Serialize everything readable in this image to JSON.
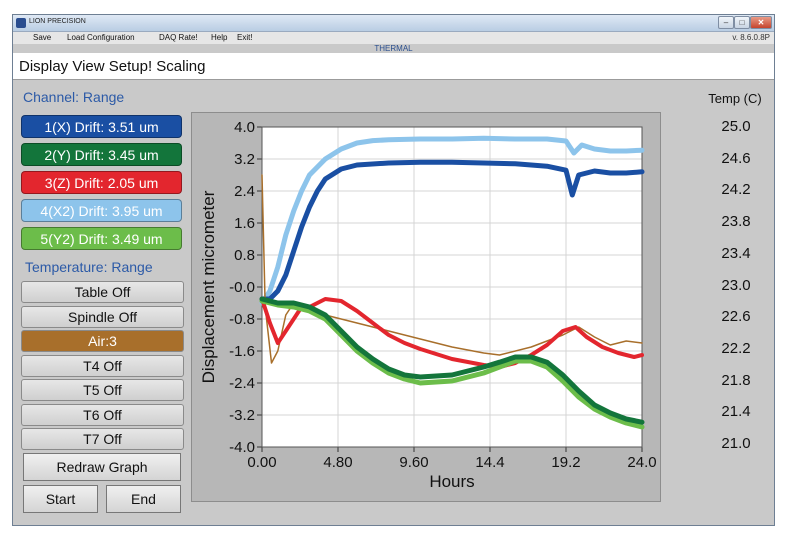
{
  "window": {
    "title": "LION PRECISION",
    "app_name": "THERMAL",
    "version": "v. 8.6.0.8P",
    "controls": {
      "minimize": "–",
      "maximize": "□",
      "close": "✕"
    }
  },
  "menu": {
    "save": "Save",
    "load_configuration": "Load Configuration",
    "daq_rate": "DAQ Rate!",
    "help": "Help",
    "exit": "Exit!"
  },
  "toolbar": {
    "text": "Display View Setup! Scaling"
  },
  "left_panel": {
    "channel_header": "Channel:  Range",
    "channels": [
      {
        "label": "1(X) Drift: 3.51 um",
        "color": "#1a4fa3"
      },
      {
        "label": "2(Y) Drift: 3.45 um",
        "color": "#13753b"
      },
      {
        "label": "3(Z) Drift: 2.05 um",
        "color": "#e3262e"
      },
      {
        "label": "4(X2) Drift: 3.95 um",
        "color": "#8dc4eb"
      },
      {
        "label": "5(Y2) Drift: 3.49 um",
        "color": "#6cbd4a"
      }
    ],
    "temperature_header": "Temperature: Range",
    "temp_buttons": [
      {
        "label": "Table Off",
        "color": ""
      },
      {
        "label": "Spindle Off",
        "color": ""
      },
      {
        "label": "Air:3",
        "color": "#a86f2b"
      },
      {
        "label": "T4 Off",
        "color": ""
      },
      {
        "label": "T5 Off",
        "color": ""
      },
      {
        "label": "T6 Off",
        "color": ""
      },
      {
        "label": "T7 Off",
        "color": ""
      }
    ],
    "redraw": "Redraw Graph",
    "start": "Start",
    "end": "End"
  },
  "temp_axis": {
    "title": "Temp (C)",
    "ticks": [
      "25.0",
      "24.6",
      "24.2",
      "23.8",
      "23.4",
      "23.0",
      "22.6",
      "22.2",
      "21.8",
      "21.4",
      "21.0"
    ]
  },
  "chart_data": {
    "type": "line",
    "xlabel": "Hours",
    "ylabel": "Displacement micrometer",
    "xlim": [
      0,
      24
    ],
    "ylim": [
      -4,
      4
    ],
    "xticks": [
      "0.00",
      "4.80",
      "9.60",
      "14.4",
      "19.2",
      "24.0"
    ],
    "yticks": [
      "4.0",
      "3.2",
      "2.4",
      "1.6",
      "0.8",
      "-0.0",
      "-0.8",
      "-1.6",
      "-2.4",
      "-3.2",
      "-4.0"
    ],
    "grid": true,
    "series": [
      {
        "color": "#8dc4eb",
        "width": 5,
        "points": [
          [
            0,
            -0.4
          ],
          [
            0.5,
            -0.1
          ],
          [
            1,
            0.5
          ],
          [
            1.5,
            1.3
          ],
          [
            2,
            1.9
          ],
          [
            2.5,
            2.4
          ],
          [
            3,
            2.8
          ],
          [
            4,
            3.2
          ],
          [
            5,
            3.45
          ],
          [
            6,
            3.6
          ],
          [
            7,
            3.66
          ],
          [
            8,
            3.68
          ],
          [
            10,
            3.7
          ],
          [
            12,
            3.7
          ],
          [
            14,
            3.72
          ],
          [
            16,
            3.7
          ],
          [
            18,
            3.7
          ],
          [
            19.2,
            3.65
          ],
          [
            19.7,
            3.35
          ],
          [
            20.2,
            3.55
          ],
          [
            21,
            3.45
          ],
          [
            22,
            3.4
          ],
          [
            23,
            3.4
          ],
          [
            24,
            3.42
          ]
        ]
      },
      {
        "color": "#1a4fa3",
        "width": 5,
        "points": [
          [
            0,
            -0.3
          ],
          [
            0.5,
            -0.3
          ],
          [
            1,
            -0.1
          ],
          [
            1.5,
            0.3
          ],
          [
            2,
            0.9
          ],
          [
            2.5,
            1.5
          ],
          [
            3,
            2.0
          ],
          [
            3.5,
            2.4
          ],
          [
            4,
            2.7
          ],
          [
            5,
            2.95
          ],
          [
            6,
            3.05
          ],
          [
            8,
            3.1
          ],
          [
            10,
            3.12
          ],
          [
            12,
            3.12
          ],
          [
            14,
            3.1
          ],
          [
            16,
            3.08
          ],
          [
            18,
            3.02
          ],
          [
            19.2,
            2.92
          ],
          [
            19.6,
            2.3
          ],
          [
            20,
            2.8
          ],
          [
            21,
            2.9
          ],
          [
            22,
            2.85
          ],
          [
            23,
            2.85
          ],
          [
            24,
            2.88
          ]
        ]
      },
      {
        "color": "#a86f2b",
        "width": 1.5,
        "points": [
          [
            0,
            2.8
          ],
          [
            0.2,
            -0.5
          ],
          [
            0.6,
            -1.9
          ],
          [
            1,
            -1.6
          ],
          [
            1.5,
            -0.7
          ],
          [
            2,
            -0.4
          ],
          [
            3,
            -0.5
          ],
          [
            4,
            -0.7
          ],
          [
            6,
            -0.9
          ],
          [
            8,
            -1.1
          ],
          [
            10,
            -1.3
          ],
          [
            12,
            -1.5
          ],
          [
            14,
            -1.65
          ],
          [
            15,
            -1.7
          ],
          [
            17,
            -1.5
          ],
          [
            19,
            -1.2
          ],
          [
            20,
            -1.0
          ],
          [
            21,
            -1.25
          ],
          [
            22,
            -1.45
          ],
          [
            23,
            -1.35
          ],
          [
            24,
            -1.4
          ]
        ]
      },
      {
        "color": "#e3262e",
        "width": 4,
        "points": [
          [
            0,
            -0.3
          ],
          [
            0.5,
            -0.9
          ],
          [
            1,
            -1.4
          ],
          [
            1.5,
            -1.1
          ],
          [
            2,
            -0.8
          ],
          [
            2.5,
            -0.5
          ],
          [
            3,
            -0.5
          ],
          [
            4,
            -0.3
          ],
          [
            5,
            -0.35
          ],
          [
            6,
            -0.6
          ],
          [
            7,
            -0.9
          ],
          [
            8,
            -1.2
          ],
          [
            9,
            -1.4
          ],
          [
            10,
            -1.55
          ],
          [
            12,
            -1.8
          ],
          [
            14,
            -1.95
          ],
          [
            15,
            -2.0
          ],
          [
            16,
            -1.9
          ],
          [
            17,
            -1.7
          ],
          [
            18,
            -1.45
          ],
          [
            19,
            -1.1
          ],
          [
            19.8,
            -1.0
          ],
          [
            20.5,
            -1.25
          ],
          [
            21.5,
            -1.5
          ],
          [
            22.5,
            -1.65
          ],
          [
            23.5,
            -1.75
          ],
          [
            24,
            -1.7
          ]
        ]
      },
      {
        "color": "#6cbd4a",
        "width": 5,
        "points": [
          [
            0,
            -0.35
          ],
          [
            1,
            -0.45
          ],
          [
            2,
            -0.5
          ],
          [
            3,
            -0.6
          ],
          [
            4,
            -0.8
          ],
          [
            5,
            -1.2
          ],
          [
            6,
            -1.6
          ],
          [
            7,
            -1.9
          ],
          [
            8,
            -2.15
          ],
          [
            9,
            -2.3
          ],
          [
            10,
            -2.4
          ],
          [
            12,
            -2.35
          ],
          [
            14,
            -2.15
          ],
          [
            15,
            -2.0
          ],
          [
            16,
            -1.85
          ],
          [
            17,
            -1.85
          ],
          [
            18,
            -2.0
          ],
          [
            19,
            -2.35
          ],
          [
            20,
            -2.75
          ],
          [
            21,
            -3.05
          ],
          [
            22,
            -3.25
          ],
          [
            23,
            -3.4
          ],
          [
            24,
            -3.5
          ]
        ]
      },
      {
        "color": "#13753b",
        "width": 5,
        "points": [
          [
            0,
            -0.3
          ],
          [
            1,
            -0.4
          ],
          [
            2,
            -0.4
          ],
          [
            3,
            -0.5
          ],
          [
            4,
            -0.7
          ],
          [
            5,
            -1.1
          ],
          [
            6,
            -1.5
          ],
          [
            7,
            -1.8
          ],
          [
            8,
            -2.05
          ],
          [
            9,
            -2.2
          ],
          [
            10,
            -2.25
          ],
          [
            12,
            -2.2
          ],
          [
            14,
            -2.0
          ],
          [
            15,
            -1.88
          ],
          [
            16,
            -1.75
          ],
          [
            17,
            -1.75
          ],
          [
            18,
            -1.88
          ],
          [
            19,
            -2.2
          ],
          [
            20,
            -2.6
          ],
          [
            21,
            -2.95
          ],
          [
            22,
            -3.15
          ],
          [
            23,
            -3.3
          ],
          [
            24,
            -3.38
          ]
        ]
      }
    ]
  }
}
